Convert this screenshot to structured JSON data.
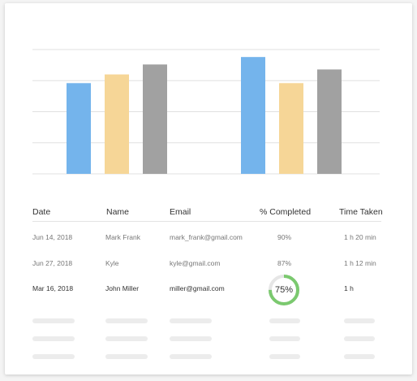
{
  "chart_data": {
    "type": "bar",
    "groups": [
      {
        "values": [
          73,
          80,
          88
        ]
      },
      {
        "values": [
          94,
          73,
          84
        ]
      }
    ],
    "ylim": [
      0,
      100
    ],
    "grid": true,
    "colors": [
      "#74b4ec",
      "#f6d697",
      "#a1a1a1"
    ]
  },
  "table": {
    "headers": [
      "Date",
      "Name",
      "Email",
      "% Completed",
      "Time Taken"
    ],
    "rows": [
      {
        "date": "Jun 14, 2018",
        "name": "Mark Frank",
        "email": "mark_frank@gmail.com",
        "completed": "90%",
        "time": "1 h 20 min"
      },
      {
        "date": "Jun 27, 2018",
        "name": "Kyle",
        "email": "kyle@gmail.com",
        "completed": "87%",
        "time": "1 h 12 min"
      },
      {
        "date": "Mar 16, 2018",
        "name": "John Miller",
        "email": "miller@gmail.com",
        "completed": "75%",
        "progress": 0.75,
        "time": "1 h"
      }
    ]
  },
  "colors": {
    "progress_ring": "#7bc96f",
    "ring_track": "#e6e6e6"
  }
}
